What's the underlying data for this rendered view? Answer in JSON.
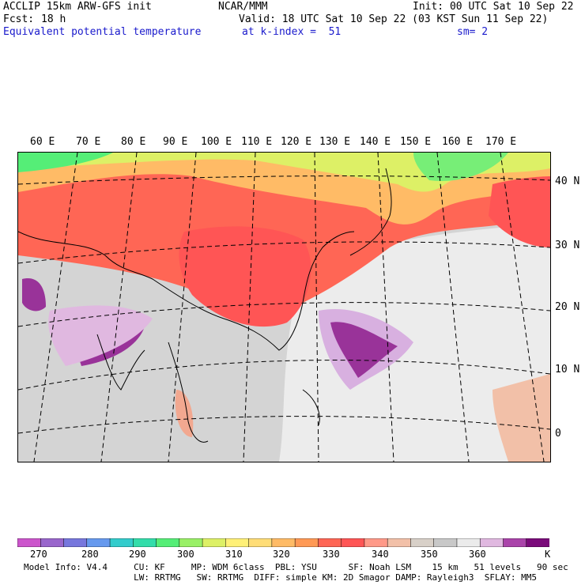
{
  "header": {
    "model_title": "ACCLIP 15km ARW-GFS init",
    "org": "NCAR/MMM",
    "init": "Init: 00 UTC Sat 10 Sep 22",
    "fcst_label": "Fcst:",
    "fcst_value": "18 h",
    "valid": "Valid: 18 UTC Sat 10 Sep 22 (03 KST Sun 11 Sep 22)",
    "field": "Equivalent potential temperature",
    "level": "at k-index =  51",
    "smooth": "sm= 2"
  },
  "map": {
    "lon_labels": [
      "60 E",
      "70 E",
      "80 E",
      "90 E",
      "100 E",
      "110 E",
      "120 E",
      "130 E",
      "140 E",
      "150 E",
      "160 E",
      "170 E"
    ],
    "lat_labels": [
      "40 N",
      "30 N",
      "20 N",
      "10 N",
      "0"
    ]
  },
  "colorbar": {
    "colors": [
      "#cc55cc",
      "#9966cc",
      "#7777dd",
      "#6699ee",
      "#33cccc",
      "#33ddaa",
      "#55ee77",
      "#99f066",
      "#ddf066",
      "#fff077",
      "#ffdd77",
      "#ffbb66",
      "#ff9955",
      "#ff6655",
      "#ff5555",
      "#ff9988",
      "#f2c0a8",
      "#d8d0c8",
      "#c8c8c8",
      "#ebebeb",
      "#e0b8e0",
      "#aa44aa",
      "#7a0a7a"
    ],
    "labels": [
      "270",
      "280",
      "290",
      "300",
      "310",
      "320",
      "330",
      "340",
      "350",
      "360"
    ],
    "unit": "K"
  },
  "footer": {
    "line1": "Model Info: V4.4     CU: KF     MP: WDM 6class  PBL: YSU      SF: Noah LSM    15 km   51 levels   90 sec",
    "line2": "                     LW: RRTMG   SW: RRTMG  DIFF: simple KM: 2D Smagor DAMP: Rayleigh3  SFLAY: MM5"
  }
}
